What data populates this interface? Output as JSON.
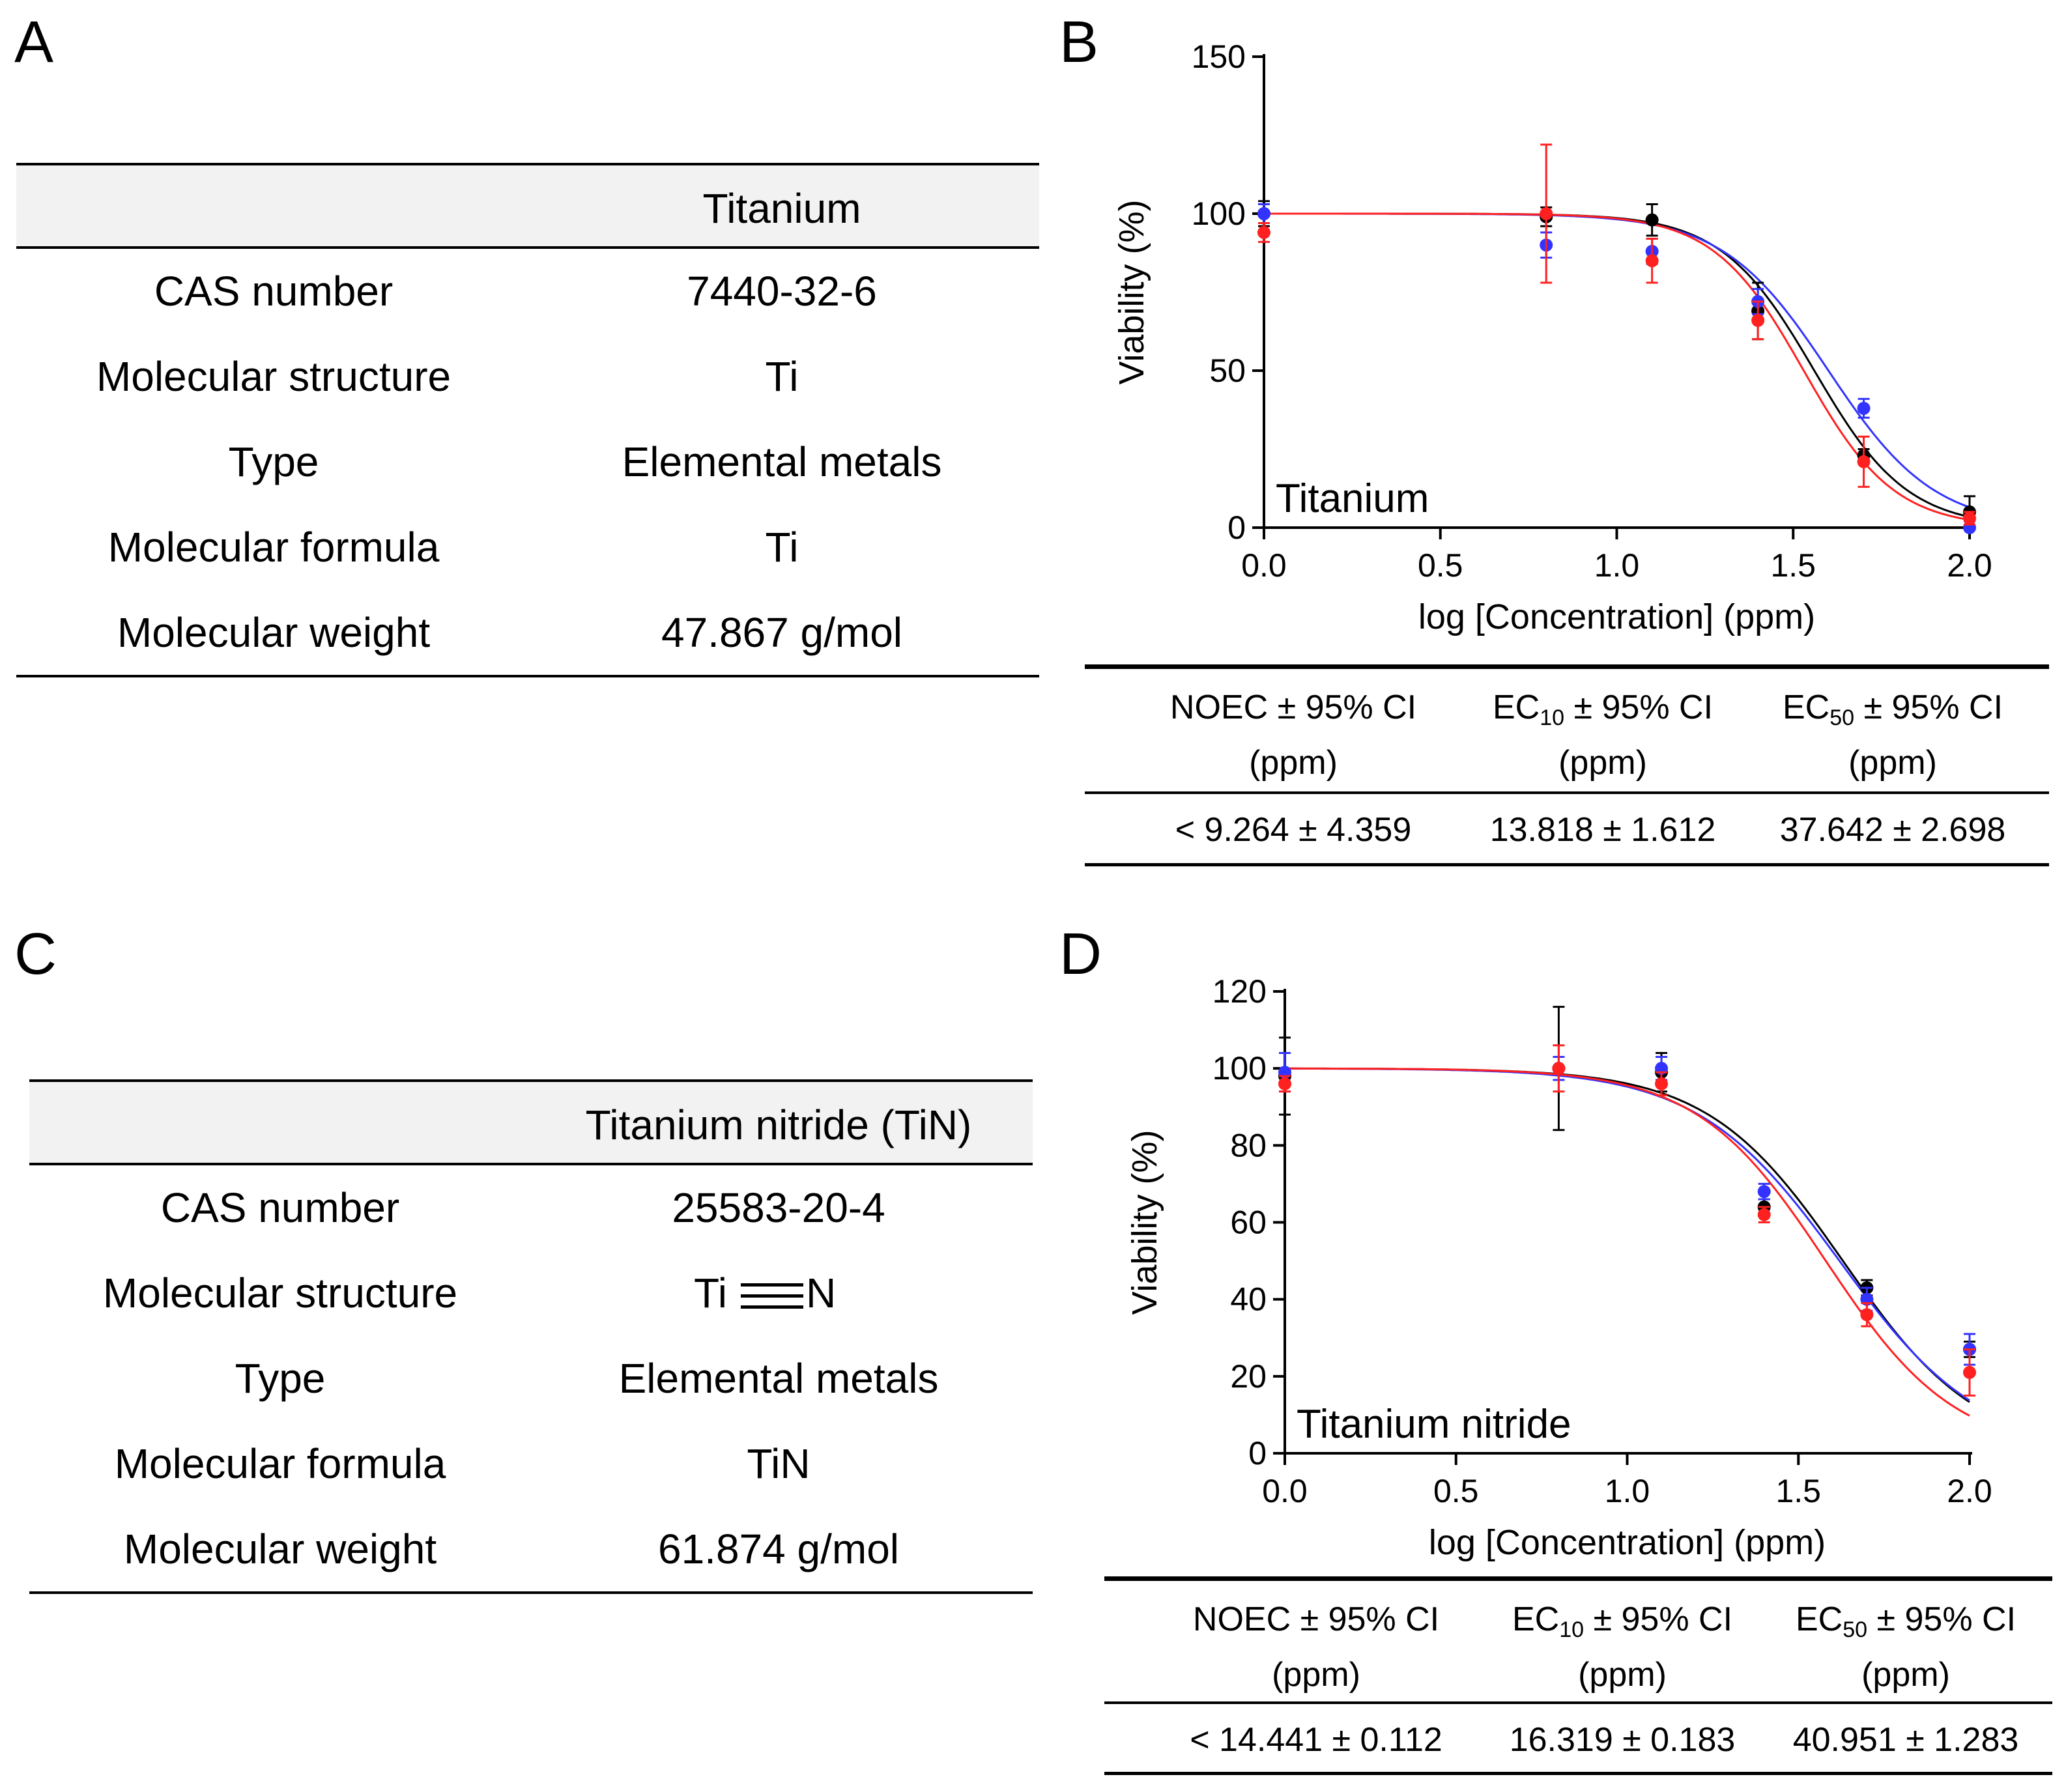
{
  "panels": {
    "A": "A",
    "B": "B",
    "C": "C",
    "D": "D"
  },
  "table_A": {
    "header": "Titanium",
    "rows": [
      {
        "label": "CAS number",
        "value": "7440-32-6"
      },
      {
        "label": "Molecular structure",
        "value": "Ti"
      },
      {
        "label": "Type",
        "value": "Elemental metals"
      },
      {
        "label": "Molecular formula",
        "value": "Ti"
      },
      {
        "label": "Molecular weight",
        "value": "47.867 g/mol"
      }
    ]
  },
  "table_C": {
    "header": "Titanium nitride (TiN)",
    "rows": [
      {
        "label": "CAS number",
        "value": "25583-20-4"
      },
      {
        "label": "Molecular structure",
        "value": ""
      },
      {
        "label": "Type",
        "value": "Elemental metals"
      },
      {
        "label": "Molecular formula",
        "value": "TiN"
      },
      {
        "label": "Molecular weight",
        "value": "61.874 g/mol"
      }
    ],
    "structure_left": "Ti",
    "structure_right": "N"
  },
  "stats_B": {
    "h1a": "NOEC ± 95% CI",
    "h2a": "EC",
    "h2sub": "10",
    "h2b": " ± 95% CI",
    "h3a": "EC",
    "h3sub": "50",
    "h3b": " ± 95% CI",
    "unit": "(ppm)",
    "v1": "< 9.264 ± 4.359",
    "v2": "13.818 ± 1.612",
    "v3": "37.642 ± 2.698"
  },
  "stats_D": {
    "h1a": "NOEC ± 95% CI",
    "h2a": "EC",
    "h2sub": "10",
    "h2b": " ± 95% CI",
    "h3a": "EC",
    "h3sub": "50",
    "h3b": " ± 95% CI",
    "unit": "(ppm)",
    "v1": "< 14.441 ± 0.112",
    "v2": "16.319 ± 0.183",
    "v3": "40.951 ± 1.283"
  },
  "chart_data": [
    {
      "type": "scatter",
      "panel": "B",
      "title": "Titanium",
      "xlabel": "log [Concentration] (ppm)",
      "ylabel": "Viability (%)",
      "xlim": [
        0.0,
        2.0
      ],
      "ylim": [
        0,
        150
      ],
      "xticks": [
        0.0,
        0.5,
        1.0,
        1.5,
        2.0
      ],
      "xtick_labels": [
        "0.0",
        "0.5",
        "1.0",
        "1.5",
        "2.0"
      ],
      "yticks": [
        0,
        50,
        100,
        150
      ],
      "ytick_labels": [
        "0",
        "50",
        "100",
        "150"
      ],
      "series": [
        {
          "name": "black",
          "color": "#000000",
          "x": [
            0.0,
            0.8,
            1.1,
            1.4,
            1.7,
            2.0
          ],
          "y": [
            100,
            99,
            98,
            69,
            23,
            5
          ],
          "err": [
            4,
            3,
            5,
            9,
            2,
            5
          ],
          "ec50_log": 1.56,
          "hill": 3.3
        },
        {
          "name": "blue",
          "color": "#3333ff",
          "x": [
            0.0,
            0.8,
            1.1,
            1.4,
            1.7,
            2.0
          ],
          "y": [
            100,
            90,
            88,
            72,
            38,
            0
          ],
          "err": [
            3,
            4,
            4,
            4,
            3,
            2
          ],
          "ec50_log": 1.6,
          "hill": 2.9
        },
        {
          "name": "red",
          "color": "#ff2020",
          "x": [
            0.0,
            0.8,
            1.1,
            1.4,
            1.7,
            2.0
          ],
          "y": [
            94,
            100,
            85,
            66,
            21,
            3
          ],
          "err": [
            3,
            22,
            7,
            6,
            8,
            2
          ],
          "ec50_log": 1.53,
          "hill": 3.4
        }
      ]
    },
    {
      "type": "scatter",
      "panel": "D",
      "title": "Titanium nitride",
      "xlabel": "log [Concentration] (ppm)",
      "ylabel": "Viability (%)",
      "xlim": [
        0.0,
        2.0
      ],
      "ylim": [
        0,
        120
      ],
      "xticks": [
        0.0,
        0.5,
        1.0,
        1.5,
        2.0
      ],
      "xtick_labels": [
        "0.0",
        "0.5",
        "1.0",
        "1.5",
        "2.0"
      ],
      "yticks": [
        0,
        20,
        40,
        60,
        80,
        100,
        120
      ],
      "ytick_labels": [
        "0",
        "20",
        "40",
        "60",
        "80",
        "100",
        "120"
      ],
      "series": [
        {
          "name": "black",
          "color": "#000000",
          "x": [
            0.0,
            0.8,
            1.1,
            1.4,
            1.7,
            2.0
          ],
          "y": [
            98,
            100,
            99,
            64,
            43,
            27
          ],
          "err": [
            10,
            16,
            5,
            2,
            2,
            2
          ],
          "ec50_log": 1.63,
          "hill": 2.2
        },
        {
          "name": "blue",
          "color": "#3333ff",
          "x": [
            0.0,
            0.8,
            1.1,
            1.4,
            1.7,
            2.0
          ],
          "y": [
            99,
            100,
            100,
            68,
            40,
            27
          ],
          "err": [
            5,
            3,
            3,
            2,
            3,
            4
          ],
          "ec50_log": 1.62,
          "hill": 2.1
        },
        {
          "name": "red",
          "color": "#ff2020",
          "x": [
            0.0,
            0.8,
            1.1,
            1.4,
            1.7,
            2.0
          ],
          "y": [
            96,
            100,
            96,
            62,
            36,
            21
          ],
          "err": [
            2,
            6,
            3,
            2,
            3,
            6
          ],
          "ec50_log": 1.58,
          "hill": 2.3
        }
      ]
    }
  ]
}
